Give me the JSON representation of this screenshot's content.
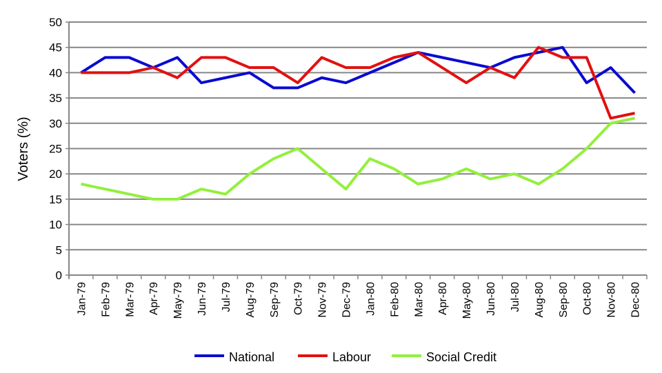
{
  "chart_data": {
    "type": "line",
    "title": "",
    "xlabel": "",
    "ylabel": "Voters (%)",
    "ylim": [
      0,
      50
    ],
    "yticks": [
      0,
      5,
      10,
      15,
      20,
      25,
      30,
      35,
      40,
      45,
      50
    ],
    "grid": true,
    "legend": "bottom",
    "categories": [
      "Jan-79",
      "Feb-79",
      "Mar-79",
      "Apr-79",
      "May-79",
      "Jun-79",
      "Jul-79",
      "Aug-79",
      "Sep-79",
      "Oct-79",
      "Nov-79",
      "Dec-79",
      "Jan-80",
      "Feb-80",
      "Mar-80",
      "Apr-80",
      "May-80",
      "Jun-80",
      "Jul-80",
      "Aug-80",
      "Sep-80",
      "Oct-80",
      "Nov-80",
      "Dec-80"
    ],
    "series": [
      {
        "name": "National",
        "color": "#0a0ad2",
        "values": [
          40,
          43,
          43,
          41,
          43,
          38,
          39,
          40,
          37,
          37,
          39,
          38,
          40,
          42,
          44,
          43,
          42,
          41,
          43,
          44,
          45,
          38,
          41,
          36
        ]
      },
      {
        "name": "Labour",
        "color": "#e21010",
        "values": [
          40,
          40,
          40,
          41,
          39,
          43,
          43,
          41,
          41,
          38,
          43,
          41,
          41,
          43,
          44,
          41,
          38,
          41,
          39,
          45,
          43,
          43,
          31,
          32
        ]
      },
      {
        "name": "Social Credit",
        "color": "#92f03c",
        "values": [
          18,
          17,
          16,
          15,
          15,
          17,
          16,
          20,
          23,
          25,
          21,
          17,
          23,
          21,
          18,
          19,
          21,
          19,
          20,
          18,
          21,
          25,
          30,
          31
        ]
      }
    ]
  }
}
